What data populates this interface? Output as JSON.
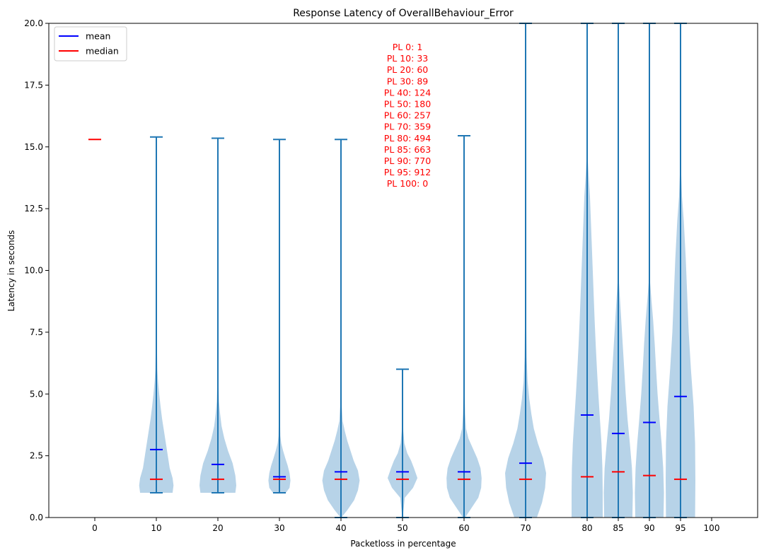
{
  "chart_data": {
    "type": "violin",
    "title": "Response Latency of OverallBehaviour_Error",
    "xlabel": "Packetloss in percentage",
    "ylabel": "Latency in seconds",
    "ylim": [
      0,
      20
    ],
    "y_ticks": [
      "0.0",
      "2.5",
      "5.0",
      "7.5",
      "10.0",
      "12.5",
      "15.0",
      "17.5",
      "20.0"
    ],
    "x_ticks": [
      "0",
      "10",
      "20",
      "30",
      "40",
      "50",
      "60",
      "70",
      "80",
      "85",
      "90",
      "95",
      "100"
    ],
    "grid": false,
    "legend": {
      "placement": "top-left",
      "entries": [
        {
          "label": "mean",
          "color": "#0000ff"
        },
        {
          "label": "median",
          "color": "#ff0000"
        }
      ]
    },
    "colors": {
      "body": "#b7d3e8",
      "stat": "#1f77b4",
      "mean": "#0000ff",
      "median": "#ff0000",
      "annotation": "#ff0000"
    },
    "annotation": [
      "PL 0: 1",
      "PL 10: 33",
      "PL 20: 60",
      "PL 30: 89",
      "PL 40: 124",
      "PL 50: 180",
      "PL 60: 257",
      "PL 70: 359",
      "PL 80: 494",
      "PL 85: 663",
      "PL 90: 770",
      "PL 95: 912",
      "PL 100: 0"
    ],
    "series": [
      {
        "x": "0",
        "min": 15.3,
        "max": 15.3,
        "mean": 15.3,
        "median": 15.3,
        "profile": [
          [
            15.3,
            0
          ]
        ]
      },
      {
        "x": "10",
        "min": 1.0,
        "max": 15.4,
        "mean": 2.75,
        "median": 1.55,
        "profile": [
          [
            1.0,
            0.85
          ],
          [
            1.3,
            0.9
          ],
          [
            1.6,
            0.85
          ],
          [
            2.0,
            0.7
          ],
          [
            2.5,
            0.6
          ],
          [
            3.0,
            0.5
          ],
          [
            3.5,
            0.4
          ],
          [
            4.0,
            0.3
          ],
          [
            4.5,
            0.22
          ],
          [
            5.0,
            0.15
          ],
          [
            5.5,
            0.09
          ],
          [
            6.0,
            0.05
          ],
          [
            7.0,
            0.03
          ],
          [
            9.0,
            0.02
          ],
          [
            12.0,
            0.015
          ],
          [
            15.4,
            0.01
          ]
        ]
      },
      {
        "x": "20",
        "min": 1.0,
        "max": 15.35,
        "mean": 2.15,
        "median": 1.55,
        "profile": [
          [
            1.0,
            0.95
          ],
          [
            1.3,
            1.0
          ],
          [
            1.7,
            0.95
          ],
          [
            2.2,
            0.8
          ],
          [
            2.7,
            0.55
          ],
          [
            3.2,
            0.35
          ],
          [
            3.7,
            0.2
          ],
          [
            4.2,
            0.12
          ],
          [
            4.7,
            0.06
          ],
          [
            5.5,
            0.03
          ],
          [
            8.0,
            0.02
          ],
          [
            12.0,
            0.015
          ],
          [
            15.35,
            0.01
          ]
        ]
      },
      {
        "x": "30",
        "min": 1.0,
        "max": 15.3,
        "mean": 1.65,
        "median": 1.55,
        "profile": [
          [
            1.0,
            0.35
          ],
          [
            1.2,
            0.55
          ],
          [
            1.5,
            0.6
          ],
          [
            1.8,
            0.55
          ],
          [
            2.1,
            0.45
          ],
          [
            2.4,
            0.32
          ],
          [
            2.7,
            0.2
          ],
          [
            3.0,
            0.1
          ],
          [
            3.3,
            0.05
          ],
          [
            4.0,
            0.03
          ],
          [
            8.0,
            0.02
          ],
          [
            15.3,
            0.01
          ]
        ]
      },
      {
        "x": "40",
        "min": 0.0,
        "max": 15.3,
        "mean": 1.85,
        "median": 1.55,
        "profile": [
          [
            0.0,
            0.02
          ],
          [
            0.3,
            0.3
          ],
          [
            0.7,
            0.62
          ],
          [
            1.1,
            0.8
          ],
          [
            1.5,
            0.88
          ],
          [
            1.9,
            0.8
          ],
          [
            2.3,
            0.6
          ],
          [
            2.7,
            0.45
          ],
          [
            3.1,
            0.3
          ],
          [
            3.5,
            0.18
          ],
          [
            3.9,
            0.08
          ],
          [
            4.5,
            0.04
          ],
          [
            8.0,
            0.02
          ],
          [
            15.3,
            0.01
          ]
        ]
      },
      {
        "x": "50",
        "min": 0.0,
        "max": 6.0,
        "mean": 1.85,
        "median": 1.55,
        "profile": [
          [
            0.0,
            0.01
          ],
          [
            0.8,
            0.12
          ],
          [
            1.2,
            0.55
          ],
          [
            1.6,
            0.78
          ],
          [
            2.0,
            0.6
          ],
          [
            2.3,
            0.45
          ],
          [
            2.6,
            0.25
          ],
          [
            3.0,
            0.1
          ],
          [
            3.5,
            0.04
          ],
          [
            4.5,
            0.02
          ],
          [
            6.0,
            0.01
          ]
        ]
      },
      {
        "x": "60",
        "min": 0.0,
        "max": 15.45,
        "mean": 1.85,
        "median": 1.55,
        "profile": [
          [
            0.0,
            0.05
          ],
          [
            0.4,
            0.35
          ],
          [
            0.8,
            0.65
          ],
          [
            1.2,
            0.78
          ],
          [
            1.6,
            0.8
          ],
          [
            2.0,
            0.75
          ],
          [
            2.4,
            0.6
          ],
          [
            2.8,
            0.4
          ],
          [
            3.2,
            0.2
          ],
          [
            3.6,
            0.09
          ],
          [
            4.2,
            0.05
          ],
          [
            5.0,
            0.03
          ],
          [
            8.0,
            0.02
          ],
          [
            15.45,
            0.01
          ]
        ]
      },
      {
        "x": "70",
        "min": 0.0,
        "max": 20.0,
        "mean": 2.2,
        "median": 1.55,
        "profile": [
          [
            0.0,
            0.55
          ],
          [
            0.6,
            0.8
          ],
          [
            1.2,
            0.95
          ],
          [
            1.8,
            1.0
          ],
          [
            2.4,
            0.85
          ],
          [
            3.0,
            0.6
          ],
          [
            3.6,
            0.4
          ],
          [
            4.2,
            0.28
          ],
          [
            4.8,
            0.18
          ],
          [
            5.5,
            0.1
          ],
          [
            6.5,
            0.05
          ],
          [
            8.0,
            0.03
          ],
          [
            12.0,
            0.02
          ],
          [
            20.0,
            0.015
          ]
        ]
      },
      {
        "x": "80",
        "min": 0.0,
        "max": 20.0,
        "mean": 4.15,
        "median": 1.65,
        "profile": [
          [
            0.0,
            1.0
          ],
          [
            1.0,
            1.0
          ],
          [
            2.0,
            0.98
          ],
          [
            3.0,
            0.92
          ],
          [
            4.0,
            0.82
          ],
          [
            5.0,
            0.72
          ],
          [
            6.0,
            0.63
          ],
          [
            7.0,
            0.55
          ],
          [
            8.0,
            0.48
          ],
          [
            9.0,
            0.42
          ],
          [
            10.0,
            0.36
          ],
          [
            11.0,
            0.3
          ],
          [
            12.0,
            0.24
          ],
          [
            13.0,
            0.18
          ],
          [
            13.8,
            0.1
          ],
          [
            14.5,
            0.04
          ],
          [
            16.0,
            0.02
          ],
          [
            20.0,
            0.01
          ]
        ]
      },
      {
        "x": "85",
        "min": 0.0,
        "max": 20.0,
        "mean": 3.4,
        "median": 1.85,
        "profile": [
          [
            0.0,
            0.95
          ],
          [
            1.0,
            0.98
          ],
          [
            2.0,
            0.92
          ],
          [
            3.0,
            0.78
          ],
          [
            4.0,
            0.62
          ],
          [
            5.0,
            0.5
          ],
          [
            6.0,
            0.4
          ],
          [
            7.0,
            0.3
          ],
          [
            8.0,
            0.2
          ],
          [
            8.8,
            0.12
          ],
          [
            9.5,
            0.05
          ],
          [
            11.0,
            0.03
          ],
          [
            14.0,
            0.02
          ],
          [
            20.0,
            0.015
          ]
        ]
      },
      {
        "x": "90",
        "min": 0.0,
        "max": 20.0,
        "mean": 3.85,
        "median": 1.7,
        "profile": [
          [
            0.0,
            0.95
          ],
          [
            1.0,
            0.98
          ],
          [
            2.0,
            0.93
          ],
          [
            3.0,
            0.82
          ],
          [
            4.0,
            0.68
          ],
          [
            5.0,
            0.55
          ],
          [
            6.0,
            0.45
          ],
          [
            7.0,
            0.36
          ],
          [
            8.0,
            0.25
          ],
          [
            8.8,
            0.14
          ],
          [
            9.5,
            0.05
          ],
          [
            11.0,
            0.03
          ],
          [
            14.0,
            0.02
          ],
          [
            20.0,
            0.015
          ]
        ]
      },
      {
        "x": "95",
        "min": 0.0,
        "max": 20.0,
        "mean": 4.9,
        "median": 1.55,
        "profile": [
          [
            0.0,
            0.98
          ],
          [
            1.5,
            1.0
          ],
          [
            3.0,
            0.98
          ],
          [
            4.5,
            0.88
          ],
          [
            6.0,
            0.7
          ],
          [
            7.5,
            0.55
          ],
          [
            9.0,
            0.45
          ],
          [
            10.5,
            0.35
          ],
          [
            12.0,
            0.22
          ],
          [
            13.0,
            0.1
          ],
          [
            14.0,
            0.04
          ],
          [
            16.0,
            0.02
          ],
          [
            20.0,
            0.015
          ]
        ]
      },
      {
        "x": "100",
        "empty": true
      }
    ]
  }
}
